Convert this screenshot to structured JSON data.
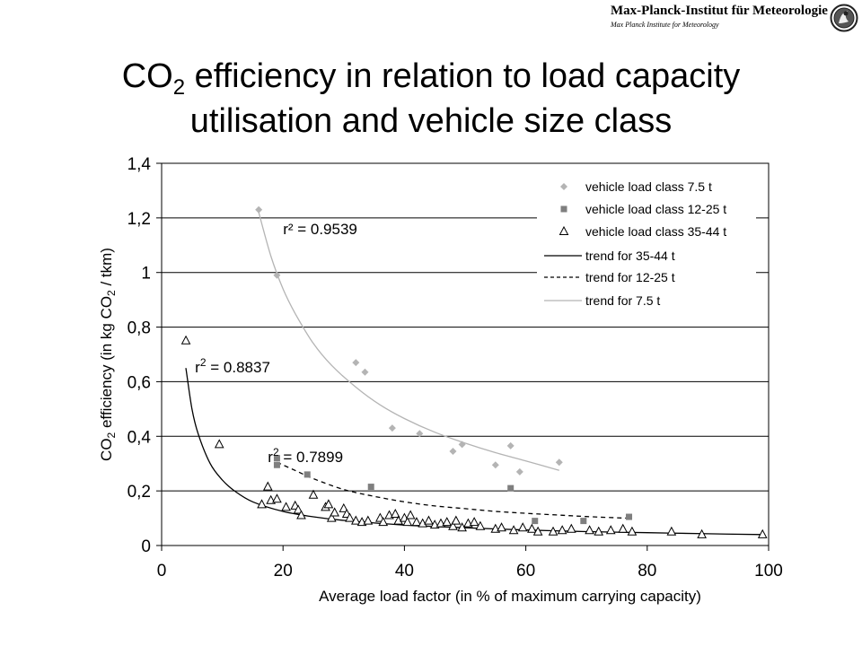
{
  "header": {
    "institute": "Max-Planck-Institut für Meteorologie",
    "institute_sub": "Max Planck Institute for Meteorology",
    "logo_icon": "mpg-minerva-emblem"
  },
  "title": {
    "pre": "CO",
    "sub": "2",
    "line1_rest": " efficiency in relation to load capacity",
    "line2": "utilisation and vehicle size class"
  },
  "chart_data": {
    "type": "scatter",
    "xlabel": "Average load factor (in % of maximum carrying capacity)",
    "ylabel": {
      "pre": "CO",
      "sub": "2",
      "mid": " efficiency (in kg CO",
      "sub2": "2",
      "post": " / tkm)"
    },
    "xlim": [
      0,
      100
    ],
    "ylim": [
      0,
      1.4
    ],
    "xticks": [
      "0",
      "20",
      "40",
      "60",
      "80",
      "100"
    ],
    "yticks": [
      "0",
      "0,2",
      "0,4",
      "0,6",
      "0,8",
      "1",
      "1,2",
      "1,4"
    ],
    "grid": "horizontal",
    "legend_position": "top-right",
    "series": [
      {
        "name": "vehicle load class 7.5 t",
        "marker": "diamond",
        "color": "#b4b4b4",
        "points": [
          [
            16,
            1.23
          ],
          [
            19,
            0.99
          ],
          [
            32,
            0.67
          ],
          [
            33.5,
            0.635
          ],
          [
            38,
            0.43
          ],
          [
            42.5,
            0.41
          ],
          [
            48,
            0.345
          ],
          [
            49.5,
            0.37
          ],
          [
            55,
            0.295
          ],
          [
            57.5,
            0.365
          ],
          [
            59,
            0.27
          ],
          [
            65.5,
            0.305
          ]
        ]
      },
      {
        "name": "vehicle load class 12-25 t",
        "marker": "square",
        "color": "#7f7f7f",
        "points": [
          [
            19,
            0.32
          ],
          [
            19,
            0.295
          ],
          [
            24,
            0.26
          ],
          [
            34.5,
            0.215
          ],
          [
            57.5,
            0.21
          ],
          [
            61.5,
            0.09
          ],
          [
            69.5,
            0.09
          ],
          [
            77,
            0.105
          ]
        ]
      },
      {
        "name": "vehicle load class 35-44 t",
        "marker": "triangle",
        "color": "#000000",
        "points": [
          [
            4,
            0.75
          ],
          [
            9.5,
            0.37
          ],
          [
            16.5,
            0.15
          ],
          [
            17.5,
            0.215
          ],
          [
            18,
            0.165
          ],
          [
            19,
            0.17
          ],
          [
            20.5,
            0.14
          ],
          [
            22,
            0.145
          ],
          [
            22.5,
            0.13
          ],
          [
            23,
            0.11
          ],
          [
            25,
            0.185
          ],
          [
            27,
            0.14
          ],
          [
            27.5,
            0.15
          ],
          [
            28,
            0.1
          ],
          [
            28.5,
            0.12
          ],
          [
            30,
            0.135
          ],
          [
            30.5,
            0.115
          ],
          [
            31,
            0.1
          ],
          [
            32,
            0.09
          ],
          [
            33,
            0.085
          ],
          [
            34,
            0.09
          ],
          [
            36,
            0.1
          ],
          [
            36.5,
            0.085
          ],
          [
            37.5,
            0.11
          ],
          [
            38.5,
            0.115
          ],
          [
            39,
            0.09
          ],
          [
            40,
            0.1
          ],
          [
            40.5,
            0.085
          ],
          [
            41,
            0.11
          ],
          [
            42,
            0.085
          ],
          [
            43,
            0.08
          ],
          [
            44,
            0.09
          ],
          [
            45,
            0.075
          ],
          [
            46,
            0.08
          ],
          [
            47,
            0.085
          ],
          [
            48,
            0.07
          ],
          [
            48.5,
            0.09
          ],
          [
            49.5,
            0.065
          ],
          [
            50.5,
            0.08
          ],
          [
            51.5,
            0.085
          ],
          [
            52.5,
            0.07
          ],
          [
            55,
            0.06
          ],
          [
            56,
            0.065
          ],
          [
            58,
            0.055
          ],
          [
            59.5,
            0.065
          ],
          [
            61,
            0.06
          ],
          [
            62,
            0.05
          ],
          [
            64.5,
            0.05
          ],
          [
            66,
            0.055
          ],
          [
            67.5,
            0.06
          ],
          [
            70.5,
            0.055
          ],
          [
            72,
            0.05
          ],
          [
            74,
            0.055
          ],
          [
            76,
            0.06
          ],
          [
            77.5,
            0.05
          ],
          [
            84,
            0.05
          ],
          [
            89,
            0.04
          ],
          [
            99,
            0.04
          ]
        ]
      }
    ],
    "trends": [
      {
        "name": "trend for 35-44 t",
        "style": "solid",
        "color": "#000000",
        "x_range": [
          4,
          99
        ],
        "points": [
          [
            4,
            0.65
          ],
          [
            5,
            0.5
          ],
          [
            6,
            0.41
          ],
          [
            8,
            0.3
          ],
          [
            10,
            0.24
          ],
          [
            12,
            0.2
          ],
          [
            15,
            0.16
          ],
          [
            20,
            0.125
          ],
          [
            25,
            0.105
          ],
          [
            30,
            0.092
          ],
          [
            40,
            0.075
          ],
          [
            50,
            0.065
          ],
          [
            60,
            0.057
          ],
          [
            70,
            0.051
          ],
          [
            80,
            0.047
          ],
          [
            90,
            0.043
          ],
          [
            99,
            0.04
          ]
        ]
      },
      {
        "name": "trend for 12-25 t",
        "style": "dashed",
        "color": "#000000",
        "x_range": [
          19,
          77
        ],
        "points": [
          [
            19,
            0.305
          ],
          [
            22,
            0.275
          ],
          [
            25,
            0.245
          ],
          [
            30,
            0.205
          ],
          [
            35,
            0.18
          ],
          [
            40,
            0.16
          ],
          [
            45,
            0.145
          ],
          [
            50,
            0.135
          ],
          [
            55,
            0.125
          ],
          [
            60,
            0.118
          ],
          [
            65,
            0.112
          ],
          [
            70,
            0.106
          ],
          [
            77,
            0.1
          ]
        ]
      },
      {
        "name": "trend for 7.5 t",
        "style": "solid",
        "color": "#b4b4b4",
        "x_range": [
          16,
          65.5
        ],
        "points": [
          [
            16,
            1.22
          ],
          [
            18,
            1.06
          ],
          [
            20,
            0.94
          ],
          [
            22,
            0.85
          ],
          [
            25,
            0.74
          ],
          [
            28,
            0.66
          ],
          [
            32,
            0.58
          ],
          [
            36,
            0.515
          ],
          [
            40,
            0.465
          ],
          [
            45,
            0.415
          ],
          [
            50,
            0.375
          ],
          [
            55,
            0.34
          ],
          [
            60,
            0.31
          ],
          [
            65.5,
            0.275
          ]
        ]
      }
    ],
    "annotations": [
      {
        "label": "r² = 0.9539",
        "x": 20,
        "y": 1.14
      },
      {
        "label": "r",
        "sup": "2",
        "rest": " = 0.8837",
        "x": 5.5,
        "y": 0.635
      },
      {
        "label": "r",
        "sup": "2",
        "rest": " = 0.7899",
        "x": 17.5,
        "y": 0.305
      }
    ]
  }
}
